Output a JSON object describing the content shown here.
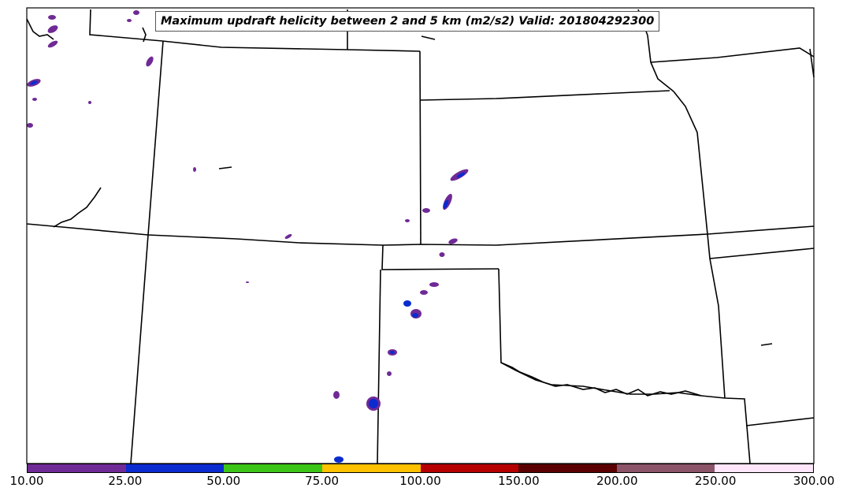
{
  "title": "Maximum updraft helicity between 2 and 5 km (m2/s2) Valid: 201804292300",
  "colorbar": {
    "ticks": [
      "10.00",
      "25.00",
      "50.00",
      "75.00",
      "100.00",
      "150.00",
      "200.00",
      "250.00",
      "300.00"
    ],
    "colors": [
      "#6f2a96",
      "#0a2bd0",
      "#3cc418",
      "#ffc100",
      "#b60000",
      "#5a0000",
      "#8c5468",
      "#ffe6fa"
    ]
  },
  "map": {
    "border_color": "#000000",
    "cell_colors": {
      "low": "#6f2a96",
      "high": "#0a2bd0",
      "top": "#3cc418"
    }
  }
}
